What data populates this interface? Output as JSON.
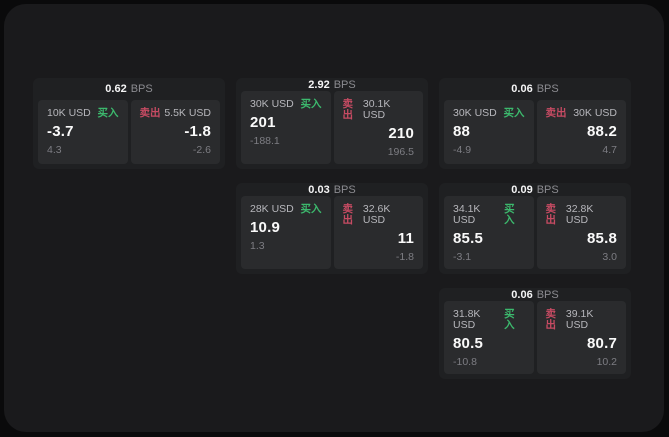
{
  "labels": {
    "bps_unit": "BPS",
    "buy": "买入",
    "sell": "卖出"
  },
  "colors": {
    "page_bg": "#0a0a0b",
    "window_bg": "#1a1a1c",
    "card_bg": "#1f2022",
    "panel_bg": "#2a2b2d",
    "buy_green": "#3cb96d",
    "sell_red": "#c74b63",
    "value_white": "#fafafa",
    "muted_gray": "#7d7d83"
  },
  "cards": [
    {
      "row": 1,
      "col": 1,
      "bps": "0.62",
      "buy": {
        "size": "10K USD",
        "value": "-3.7",
        "delta": "4.3"
      },
      "sell": {
        "size": "5.5K USD",
        "value": "-1.8",
        "delta": "-2.6"
      }
    },
    {
      "row": 1,
      "col": 2,
      "bps": "2.92",
      "buy": {
        "size": "30K USD",
        "value": "201",
        "delta": "-188.1"
      },
      "sell": {
        "size": "30.1K USD",
        "value": "210",
        "delta": "196.5"
      }
    },
    {
      "row": 1,
      "col": 3,
      "bps": "0.06",
      "buy": {
        "size": "30K USD",
        "value": "88",
        "delta": "-4.9"
      },
      "sell": {
        "size": "30K USD",
        "value": "88.2",
        "delta": "4.7"
      }
    },
    {
      "row": 2,
      "col": 2,
      "bps": "0.03",
      "buy": {
        "size": "28K USD",
        "value": "10.9",
        "delta": "1.3"
      },
      "sell": {
        "size": "32.6K USD",
        "value": "11",
        "delta": "-1.8"
      }
    },
    {
      "row": 2,
      "col": 3,
      "bps": "0.09",
      "buy": {
        "size": "34.1K USD",
        "value": "85.5",
        "delta": "-3.1"
      },
      "sell": {
        "size": "32.8K USD",
        "value": "85.8",
        "delta": "3.0"
      }
    },
    {
      "row": 3,
      "col": 3,
      "bps": "0.06",
      "buy": {
        "size": "31.8K USD",
        "value": "80.5",
        "delta": "-10.8"
      },
      "sell": {
        "size": "39.1K USD",
        "value": "80.7",
        "delta": "10.2"
      }
    }
  ]
}
